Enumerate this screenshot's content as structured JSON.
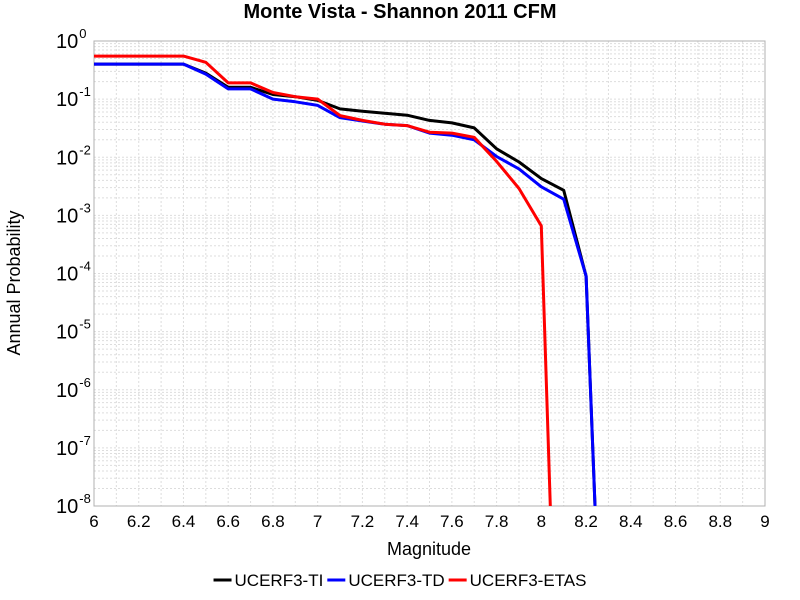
{
  "chart_data": {
    "type": "line",
    "title": "Monte Vista - Shannon 2011 CFM",
    "xlabel": "Magnitude",
    "ylabel": "Annual Probability",
    "xlim": [
      6,
      9
    ],
    "ylim": [
      1e-08,
      1
    ],
    "yscale": "log",
    "grid": true,
    "legend_position": "bottom",
    "xticks": [
      "6",
      "6.2",
      "6.4",
      "6.6",
      "6.8",
      "7",
      "7.2",
      "7.4",
      "7.6",
      "7.8",
      "8",
      "8.2",
      "8.4",
      "8.6",
      "8.8",
      "9"
    ],
    "yticks": [
      {
        "base": "10",
        "exp": "0"
      },
      {
        "base": "10",
        "exp": "-1"
      },
      {
        "base": "10",
        "exp": "-2"
      },
      {
        "base": "10",
        "exp": "-3"
      },
      {
        "base": "10",
        "exp": "-4"
      },
      {
        "base": "10",
        "exp": "-5"
      },
      {
        "base": "10",
        "exp": "-6"
      },
      {
        "base": "10",
        "exp": "-7"
      },
      {
        "base": "10",
        "exp": "-8"
      }
    ],
    "series": [
      {
        "name": "UCERF3-TI",
        "color": "#000000",
        "x": [
          6.0,
          6.1,
          6.2,
          6.3,
          6.4,
          6.5,
          6.6,
          6.7,
          6.8,
          6.9,
          7.0,
          7.1,
          7.2,
          7.3,
          7.4,
          7.5,
          7.6,
          7.7,
          7.8,
          7.9,
          8.0,
          8.1,
          8.2,
          8.24
        ],
        "y": [
          0.4,
          0.4,
          0.4,
          0.4,
          0.4,
          0.28,
          0.16,
          0.16,
          0.12,
          0.11,
          0.095,
          0.068,
          0.062,
          0.057,
          0.053,
          0.043,
          0.039,
          0.032,
          0.014,
          0.0083,
          0.0043,
          0.0027,
          9e-05,
          1e-08
        ]
      },
      {
        "name": "UCERF3-TD",
        "color": "#0000ff",
        "x": [
          6.0,
          6.1,
          6.2,
          6.3,
          6.4,
          6.5,
          6.6,
          6.7,
          6.8,
          6.9,
          7.0,
          7.1,
          7.2,
          7.3,
          7.4,
          7.5,
          7.6,
          7.7,
          7.8,
          7.9,
          8.0,
          8.1,
          8.2,
          8.24
        ],
        "y": [
          0.4,
          0.4,
          0.4,
          0.4,
          0.4,
          0.27,
          0.15,
          0.15,
          0.1,
          0.09,
          0.078,
          0.048,
          0.042,
          0.037,
          0.035,
          0.026,
          0.024,
          0.02,
          0.0103,
          0.0063,
          0.0031,
          0.0019,
          9e-05,
          1e-08
        ]
      },
      {
        "name": "UCERF3-ETAS",
        "color": "#ff0000",
        "x": [
          6.0,
          6.1,
          6.2,
          6.3,
          6.4,
          6.5,
          6.6,
          6.7,
          6.8,
          6.9,
          7.0,
          7.1,
          7.2,
          7.3,
          7.4,
          7.5,
          7.6,
          7.7,
          7.8,
          7.9,
          8.0,
          8.04
        ],
        "y": [
          0.55,
          0.55,
          0.55,
          0.55,
          0.55,
          0.43,
          0.19,
          0.19,
          0.13,
          0.11,
          0.1,
          0.052,
          0.043,
          0.037,
          0.035,
          0.027,
          0.026,
          0.022,
          0.0085,
          0.0029,
          0.00066,
          1e-08
        ]
      }
    ]
  }
}
